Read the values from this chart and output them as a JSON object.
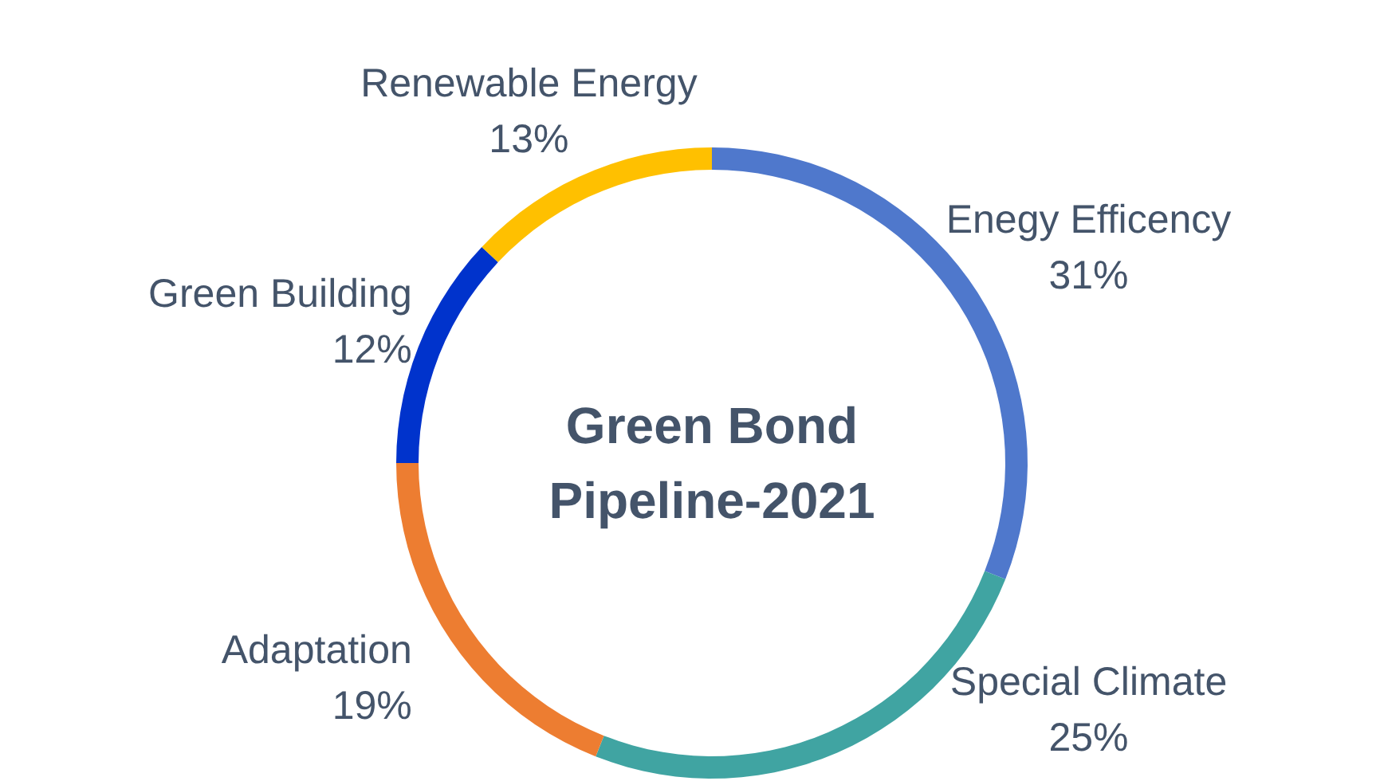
{
  "chart_data": {
    "type": "donut",
    "title": "Green Bond\nPipeline-2021",
    "categories": [
      "Enegy Efficency",
      "Special Climate",
      "Adaptation",
      "Green Building",
      "Renewable Energy"
    ],
    "values": [
      31,
      25,
      19,
      12,
      13
    ],
    "value_labels": [
      "31%",
      "25%",
      "19%",
      "12%",
      "13%"
    ],
    "colors": [
      "#4f78cc",
      "#40a4a2",
      "#ed7d31",
      "#0033cc",
      "#ffc000"
    ]
  }
}
